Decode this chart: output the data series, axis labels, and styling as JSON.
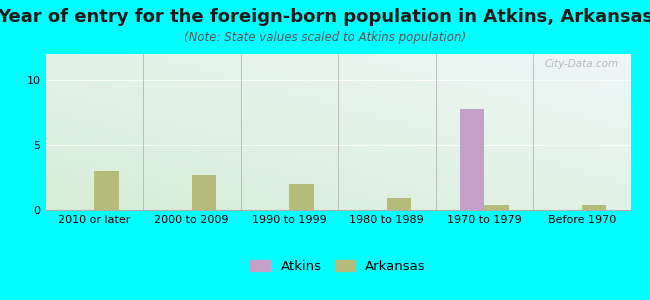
{
  "title": "Year of entry for the foreign-born population in Atkins, Arkansas",
  "subtitle": "(Note: State values scaled to Atkins population)",
  "categories": [
    "2010 or later",
    "2000 to 2009",
    "1990 to 1999",
    "1980 to 1989",
    "1970 to 1979",
    "Before 1970"
  ],
  "atkins_values": [
    0,
    0,
    0,
    0,
    7.8,
    0
  ],
  "arkansas_values": [
    3.0,
    2.7,
    2.0,
    0.9,
    0.4,
    0.4
  ],
  "atkins_color": "#c4a0c8",
  "arkansas_color": "#b5bc7a",
  "ylim": [
    0,
    12
  ],
  "yticks": [
    0,
    5,
    10
  ],
  "bar_width": 0.25,
  "background_color": "#00ffff",
  "title_fontsize": 13,
  "subtitle_fontsize": 8.5,
  "axis_label_fontsize": 8,
  "legend_label_atkins": "Atkins",
  "legend_label_arkansas": "Arkansas",
  "watermark": "City-Data.com",
  "plot_bg_left_top": "#c8e6c8",
  "plot_bg_right_bottom": "#e8f8f8"
}
